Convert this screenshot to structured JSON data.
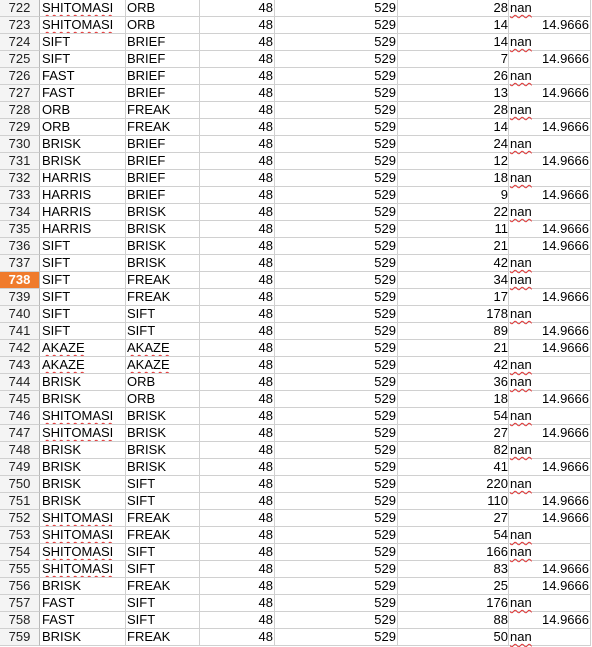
{
  "selected_row": "738",
  "rows": [
    {
      "n": "722",
      "a": "SHITOMASI",
      "b": "ORB",
      "c": "48",
      "d": "529",
      "e": "28",
      "f": "",
      "nan": "nan"
    },
    {
      "n": "723",
      "a": "SHITOMASI",
      "b": "ORB",
      "c": "48",
      "d": "529",
      "e": "14",
      "f": "14.9666",
      "nan": ""
    },
    {
      "n": "724",
      "a": "SIFT",
      "b": "BRIEF",
      "c": "48",
      "d": "529",
      "e": "14",
      "f": "",
      "nan": "nan"
    },
    {
      "n": "725",
      "a": "SIFT",
      "b": "BRIEF",
      "c": "48",
      "d": "529",
      "e": "7",
      "f": "14.9666",
      "nan": ""
    },
    {
      "n": "726",
      "a": "FAST",
      "b": "BRIEF",
      "c": "48",
      "d": "529",
      "e": "26",
      "f": "",
      "nan": "nan"
    },
    {
      "n": "727",
      "a": "FAST",
      "b": "BRIEF",
      "c": "48",
      "d": "529",
      "e": "13",
      "f": "14.9666",
      "nan": ""
    },
    {
      "n": "728",
      "a": "ORB",
      "b": "FREAK",
      "c": "48",
      "d": "529",
      "e": "28",
      "f": "",
      "nan": "nan"
    },
    {
      "n": "729",
      "a": "ORB",
      "b": "FREAK",
      "c": "48",
      "d": "529",
      "e": "14",
      "f": "14.9666",
      "nan": ""
    },
    {
      "n": "730",
      "a": "BRISK",
      "b": "BRIEF",
      "c": "48",
      "d": "529",
      "e": "24",
      "f": "",
      "nan": "nan"
    },
    {
      "n": "731",
      "a": "BRISK",
      "b": "BRIEF",
      "c": "48",
      "d": "529",
      "e": "12",
      "f": "14.9666",
      "nan": ""
    },
    {
      "n": "732",
      "a": "HARRIS",
      "b": "BRIEF",
      "c": "48",
      "d": "529",
      "e": "18",
      "f": "",
      "nan": "nan"
    },
    {
      "n": "733",
      "a": "HARRIS",
      "b": "BRIEF",
      "c": "48",
      "d": "529",
      "e": "9",
      "f": "14.9666",
      "nan": ""
    },
    {
      "n": "734",
      "a": "HARRIS",
      "b": "BRISK",
      "c": "48",
      "d": "529",
      "e": "22",
      "f": "",
      "nan": "nan"
    },
    {
      "n": "735",
      "a": "HARRIS",
      "b": "BRISK",
      "c": "48",
      "d": "529",
      "e": "11",
      "f": "14.9666",
      "nan": ""
    },
    {
      "n": "736",
      "a": "SIFT",
      "b": "BRISK",
      "c": "48",
      "d": "529",
      "e": "21",
      "f": "14.9666",
      "nan": ""
    },
    {
      "n": "737",
      "a": "SIFT",
      "b": "BRISK",
      "c": "48",
      "d": "529",
      "e": "42",
      "f": "",
      "nan": "nan"
    },
    {
      "n": "738",
      "a": "SIFT",
      "b": "FREAK",
      "c": "48",
      "d": "529",
      "e": "34",
      "f": "",
      "nan": "nan"
    },
    {
      "n": "739",
      "a": "SIFT",
      "b": "FREAK",
      "c": "48",
      "d": "529",
      "e": "17",
      "f": "14.9666",
      "nan": ""
    },
    {
      "n": "740",
      "a": "SIFT",
      "b": "SIFT",
      "c": "48",
      "d": "529",
      "e": "178",
      "f": "",
      "nan": "nan"
    },
    {
      "n": "741",
      "a": "SIFT",
      "b": "SIFT",
      "c": "48",
      "d": "529",
      "e": "89",
      "f": "14.9666",
      "nan": ""
    },
    {
      "n": "742",
      "a": "AKAZE",
      "b": "AKAZE",
      "c": "48",
      "d": "529",
      "e": "21",
      "f": "14.9666",
      "nan": ""
    },
    {
      "n": "743",
      "a": "AKAZE",
      "b": "AKAZE",
      "c": "48",
      "d": "529",
      "e": "42",
      "f": "",
      "nan": "nan"
    },
    {
      "n": "744",
      "a": "BRISK",
      "b": "ORB",
      "c": "48",
      "d": "529",
      "e": "36",
      "f": "",
      "nan": "nan"
    },
    {
      "n": "745",
      "a": "BRISK",
      "b": "ORB",
      "c": "48",
      "d": "529",
      "e": "18",
      "f": "14.9666",
      "nan": ""
    },
    {
      "n": "746",
      "a": "SHITOMASI",
      "b": "BRISK",
      "c": "48",
      "d": "529",
      "e": "54",
      "f": "",
      "nan": "nan"
    },
    {
      "n": "747",
      "a": "SHITOMASI",
      "b": "BRISK",
      "c": "48",
      "d": "529",
      "e": "27",
      "f": "14.9666",
      "nan": ""
    },
    {
      "n": "748",
      "a": "BRISK",
      "b": "BRISK",
      "c": "48",
      "d": "529",
      "e": "82",
      "f": "",
      "nan": "nan"
    },
    {
      "n": "749",
      "a": "BRISK",
      "b": "BRISK",
      "c": "48",
      "d": "529",
      "e": "41",
      "f": "14.9666",
      "nan": ""
    },
    {
      "n": "750",
      "a": "BRISK",
      "b": "SIFT",
      "c": "48",
      "d": "529",
      "e": "220",
      "f": "",
      "nan": "nan"
    },
    {
      "n": "751",
      "a": "BRISK",
      "b": "SIFT",
      "c": "48",
      "d": "529",
      "e": "110",
      "f": "14.9666",
      "nan": ""
    },
    {
      "n": "752",
      "a": "SHITOMASI",
      "b": "FREAK",
      "c": "48",
      "d": "529",
      "e": "27",
      "f": "14.9666",
      "nan": ""
    },
    {
      "n": "753",
      "a": "SHITOMASI",
      "b": "FREAK",
      "c": "48",
      "d": "529",
      "e": "54",
      "f": "",
      "nan": "nan"
    },
    {
      "n": "754",
      "a": "SHITOMASI",
      "b": "SIFT",
      "c": "48",
      "d": "529",
      "e": "166",
      "f": "",
      "nan": "nan"
    },
    {
      "n": "755",
      "a": "SHITOMASI",
      "b": "SIFT",
      "c": "48",
      "d": "529",
      "e": "83",
      "f": "14.9666",
      "nan": ""
    },
    {
      "n": "756",
      "a": "BRISK",
      "b": "FREAK",
      "c": "48",
      "d": "529",
      "e": "25",
      "f": "14.9666",
      "nan": ""
    },
    {
      "n": "757",
      "a": "FAST",
      "b": "SIFT",
      "c": "48",
      "d": "529",
      "e": "176",
      "f": "",
      "nan": "nan"
    },
    {
      "n": "758",
      "a": "FAST",
      "b": "SIFT",
      "c": "48",
      "d": "529",
      "e": "88",
      "f": "14.9666",
      "nan": ""
    },
    {
      "n": "759",
      "a": "BRISK",
      "b": "FREAK",
      "c": "48",
      "d": "529",
      "e": "50",
      "f": "",
      "nan": "nan"
    }
  ]
}
